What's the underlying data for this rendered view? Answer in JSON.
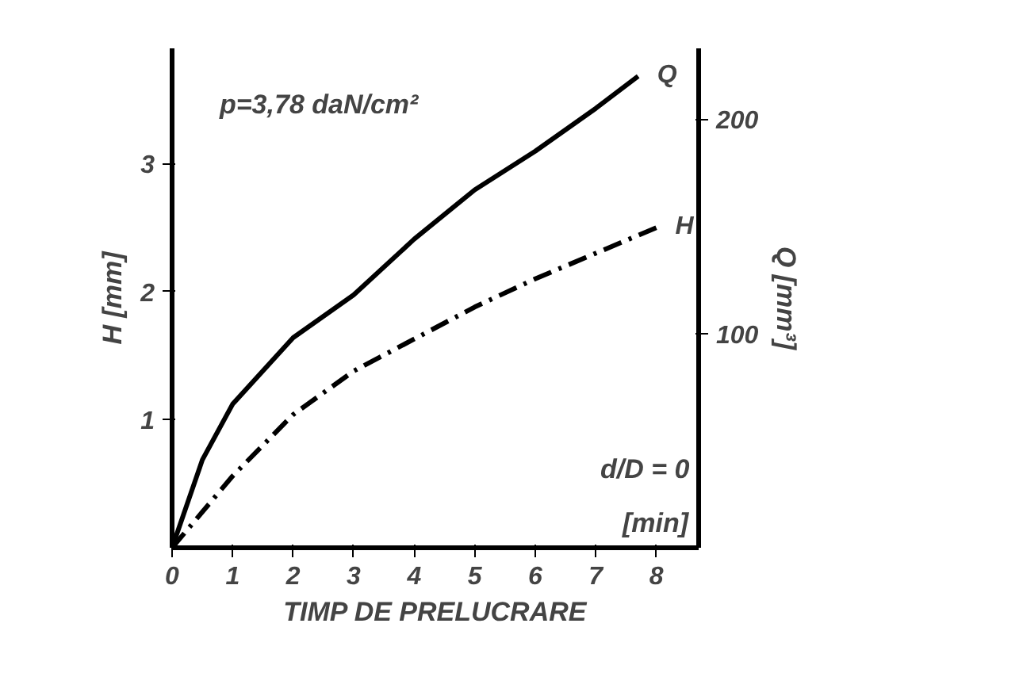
{
  "chart_data": {
    "type": "line",
    "xlabel": "TIMP DE PRELUCRARE",
    "ylabel": "H [mm]",
    "y2label": "Q [mm³]",
    "annotations": [
      "p=3,78 daN/cm²",
      "d/D = 0",
      "[min]"
    ],
    "x": [
      0,
      0.5,
      1,
      2,
      3,
      4,
      5,
      6,
      7,
      7.7
    ],
    "series": [
      {
        "name": "Q",
        "color": "#000000",
        "axis": "y2",
        "line_style": "solid",
        "values": [
          0,
          41,
          67,
          98,
          118,
          144,
          167,
          185,
          205,
          220
        ]
      },
      {
        "name": "H",
        "color": "#000000",
        "axis": "y",
        "line_style": "dashed",
        "x": [
          0,
          1,
          2,
          3,
          4,
          5,
          6,
          7,
          8
        ],
        "values": [
          0,
          0.56,
          1.04,
          1.38,
          1.63,
          1.88,
          2.1,
          2.3,
          2.5
        ]
      }
    ],
    "xlim": [
      0,
      8.7
    ],
    "ylim": [
      0,
      3.9
    ],
    "y2lim": [
      0,
      233
    ],
    "xticks": [
      0,
      1,
      2,
      3,
      4,
      5,
      6,
      7,
      8
    ],
    "yticks": [
      1,
      2,
      3
    ],
    "y2ticks": [
      100,
      200
    ],
    "grid": false
  }
}
